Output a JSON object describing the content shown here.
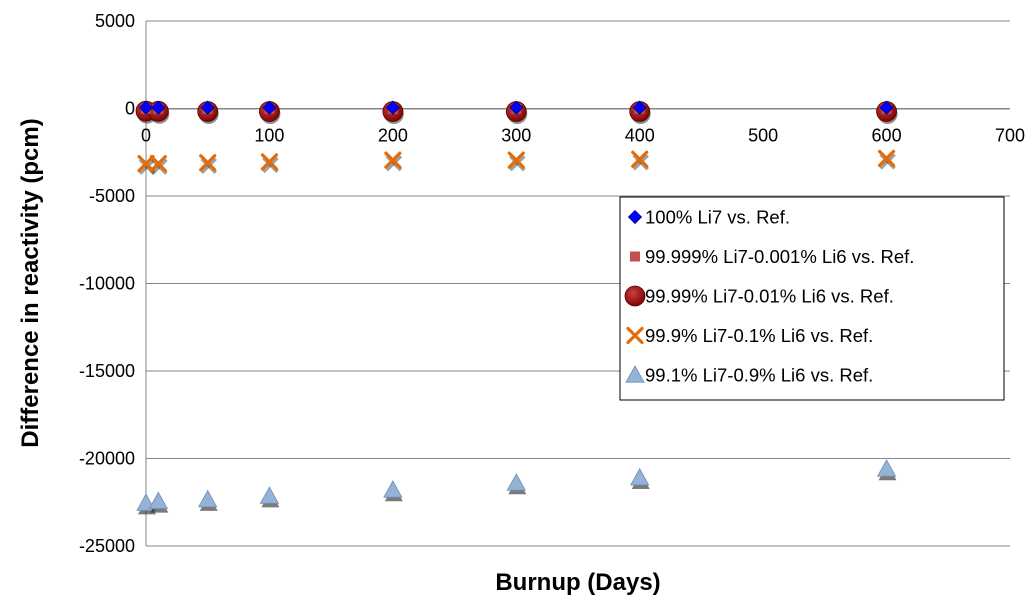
{
  "chart_data": {
    "type": "scatter",
    "title": "",
    "xlabel": "Burnup (Days)",
    "ylabel": "Difference in reactivity (pcm)",
    "xlim": [
      0,
      700
    ],
    "ylim": [
      -25000,
      5000
    ],
    "x_ticks": [
      0,
      100,
      200,
      300,
      400,
      500,
      600,
      700
    ],
    "y_ticks": [
      5000,
      0,
      -5000,
      -10000,
      -15000,
      -20000,
      -25000
    ],
    "x_tick_labels": [
      "0",
      "100",
      "200",
      "300",
      "400",
      "500",
      "600",
      "700"
    ],
    "y_tick_labels": [
      "5000",
      "0",
      "-5000",
      "-10000",
      "-15000",
      "-20000",
      "-25000"
    ],
    "grid": "horizontal",
    "legend_position": "right",
    "series": [
      {
        "name": "100% Li7 vs. Ref.",
        "marker": "diamond",
        "color": "#0000ff",
        "x": [
          0,
          10,
          50,
          100,
          200,
          300,
          400,
          600
        ],
        "y": [
          50,
          50,
          50,
          50,
          50,
          50,
          50,
          50
        ]
      },
      {
        "name": "99.999% Li7-0.001% Li6 vs. Ref.",
        "marker": "square",
        "color": "#c0504d",
        "x": [
          0,
          10,
          50,
          100,
          200,
          300,
          400,
          600
        ],
        "y": [
          -20,
          -20,
          -20,
          -20,
          -20,
          -20,
          -20,
          -20
        ]
      },
      {
        "name": "99.99% Li7-0.01% Li6 vs. Ref.",
        "marker": "circle",
        "color": "#8b0000",
        "x": [
          0,
          10,
          50,
          100,
          200,
          300,
          400,
          600
        ],
        "y": [
          -150,
          -160,
          -170,
          -170,
          -170,
          -170,
          -170,
          -170
        ]
      },
      {
        "name": "99.9% Li7-0.1% Li6 vs. Ref.",
        "marker": "x",
        "color": "#e36c09",
        "x": [
          0,
          10,
          50,
          100,
          200,
          300,
          400,
          600
        ],
        "y": [
          -3150,
          -3150,
          -3100,
          -3050,
          -2950,
          -2950,
          -2900,
          -2850
        ]
      },
      {
        "name": "99.1% Li7-0.9% Li6 vs. Ref.",
        "marker": "triangle",
        "color": "#95b3d7",
        "x": [
          0,
          10,
          50,
          100,
          200,
          300,
          400,
          600
        ],
        "y": [
          -22550,
          -22450,
          -22350,
          -22150,
          -21800,
          -21400,
          -21100,
          -20600
        ]
      }
    ]
  }
}
